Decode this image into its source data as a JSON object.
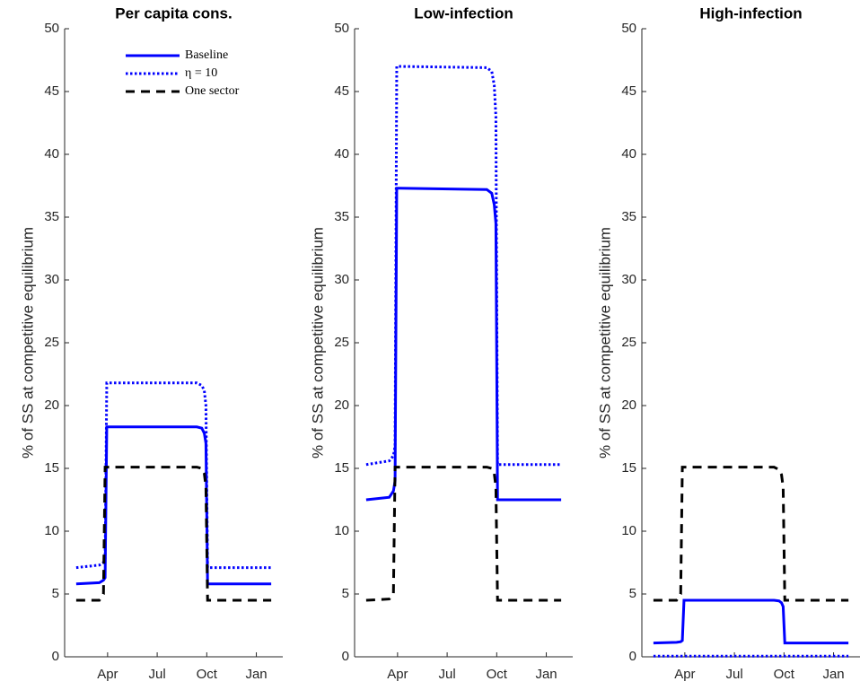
{
  "chart_data": [
    {
      "type": "line",
      "title": "Per capita cons.",
      "ylabel": "% of SS at competitive equilibrium",
      "x": [
        2.1,
        3.5,
        3.75,
        3.85,
        3.95,
        4.1,
        9.4,
        9.7,
        9.85,
        9.95,
        10.05,
        10.2,
        13.9
      ],
      "xlim": [
        1.4,
        14.6
      ],
      "xticks": [
        {
          "value": 4,
          "label": "Apr"
        },
        {
          "value": 7,
          "label": "Jul"
        },
        {
          "value": 10,
          "label": "Oct"
        },
        {
          "value": 13,
          "label": "Jan"
        }
      ],
      "ylim": [
        0,
        50
      ],
      "yticks": [
        0,
        5,
        10,
        15,
        20,
        25,
        30,
        35,
        40,
        45,
        50
      ],
      "legend": "upper center",
      "series": [
        {
          "name": "Baseline",
          "color": "#0000ff",
          "dash": "solid",
          "values": [
            5.8,
            5.9,
            6.1,
            6.3,
            18.3,
            18.3,
            18.3,
            18.2,
            17.8,
            17,
            5.8,
            5.8,
            5.8
          ]
        },
        {
          "name": "η = 10",
          "color": "#0000ff",
          "dash": "dotted",
          "values": [
            7.1,
            7.3,
            7.5,
            7.8,
            21.8,
            21.8,
            21.8,
            21.6,
            21.2,
            20,
            7.1,
            7.1,
            7.1
          ]
        },
        {
          "name": "One sector",
          "color": "#000000",
          "dash": "dashed",
          "values": [
            4.5,
            4.5,
            5.0,
            15.1,
            15.1,
            15.1,
            15.1,
            15.0,
            14.6,
            13.5,
            4.5,
            4.5,
            4.5
          ]
        }
      ]
    },
    {
      "type": "line",
      "title": "Low-infection",
      "ylabel": "% of SS at competitive equilibrium",
      "x": [
        2.1,
        3.5,
        3.75,
        3.85,
        3.95,
        4.1,
        9.4,
        9.7,
        9.85,
        9.95,
        10.05,
        10.2,
        13.9
      ],
      "xlim": [
        1.4,
        14.6
      ],
      "xticks": [
        {
          "value": 4,
          "label": "Apr"
        },
        {
          "value": 7,
          "label": "Jul"
        },
        {
          "value": 10,
          "label": "Oct"
        },
        {
          "value": 13,
          "label": "Jan"
        }
      ],
      "ylim": [
        0,
        50
      ],
      "yticks": [
        0,
        5,
        10,
        15,
        20,
        25,
        30,
        35,
        40,
        45,
        50
      ],
      "series": [
        {
          "color": "#0000ff",
          "dash": "solid",
          "values": [
            12.5,
            12.7,
            13.2,
            14,
            37.3,
            37.3,
            37.2,
            36.9,
            36,
            34.5,
            12.5,
            12.5,
            12.5
          ]
        },
        {
          "color": "#0000ff",
          "dash": "dotted",
          "values": [
            15.3,
            15.6,
            16,
            16.8,
            47,
            47,
            46.9,
            46.6,
            45.5,
            43,
            15.3,
            15.3,
            15.3
          ]
        },
        {
          "color": "#000000",
          "dash": "dashed",
          "values": [
            4.5,
            4.6,
            5.0,
            15.1,
            15.1,
            15.1,
            15.1,
            15.0,
            14.6,
            13.5,
            4.5,
            4.5,
            4.5
          ]
        }
      ]
    },
    {
      "type": "line",
      "title": "High-infection",
      "ylabel": "% of SS at competitive equilibrium",
      "x": [
        2.1,
        3.5,
        3.75,
        3.85,
        3.95,
        4.1,
        9.4,
        9.7,
        9.85,
        9.95,
        10.05,
        10.2,
        13.9
      ],
      "xlim": [
        1.4,
        14.6
      ],
      "xticks": [
        {
          "value": 4,
          "label": "Apr"
        },
        {
          "value": 7,
          "label": "Jul"
        },
        {
          "value": 10,
          "label": "Oct"
        },
        {
          "value": 13,
          "label": "Jan"
        }
      ],
      "ylim": [
        0,
        50
      ],
      "yticks": [
        0,
        5,
        10,
        15,
        20,
        25,
        30,
        35,
        40,
        45,
        50
      ],
      "series": [
        {
          "color": "#0000ff",
          "dash": "solid",
          "values": [
            1.1,
            1.15,
            1.2,
            1.3,
            4.5,
            4.5,
            4.5,
            4.45,
            4.3,
            4.0,
            1.1,
            1.1,
            1.1
          ]
        },
        {
          "color": "#0000ff",
          "dash": "dotted",
          "values": [
            0.05,
            0.05,
            0.05,
            0.05,
            0.05,
            0.05,
            0.05,
            0.05,
            0.05,
            0.05,
            0.05,
            0.05,
            0.05
          ]
        },
        {
          "color": "#000000",
          "dash": "dashed",
          "values": [
            4.5,
            4.5,
            5.0,
            15.1,
            15.1,
            15.1,
            15.1,
            14.9,
            14.5,
            13.5,
            4.5,
            4.5,
            4.5
          ]
        }
      ]
    }
  ]
}
